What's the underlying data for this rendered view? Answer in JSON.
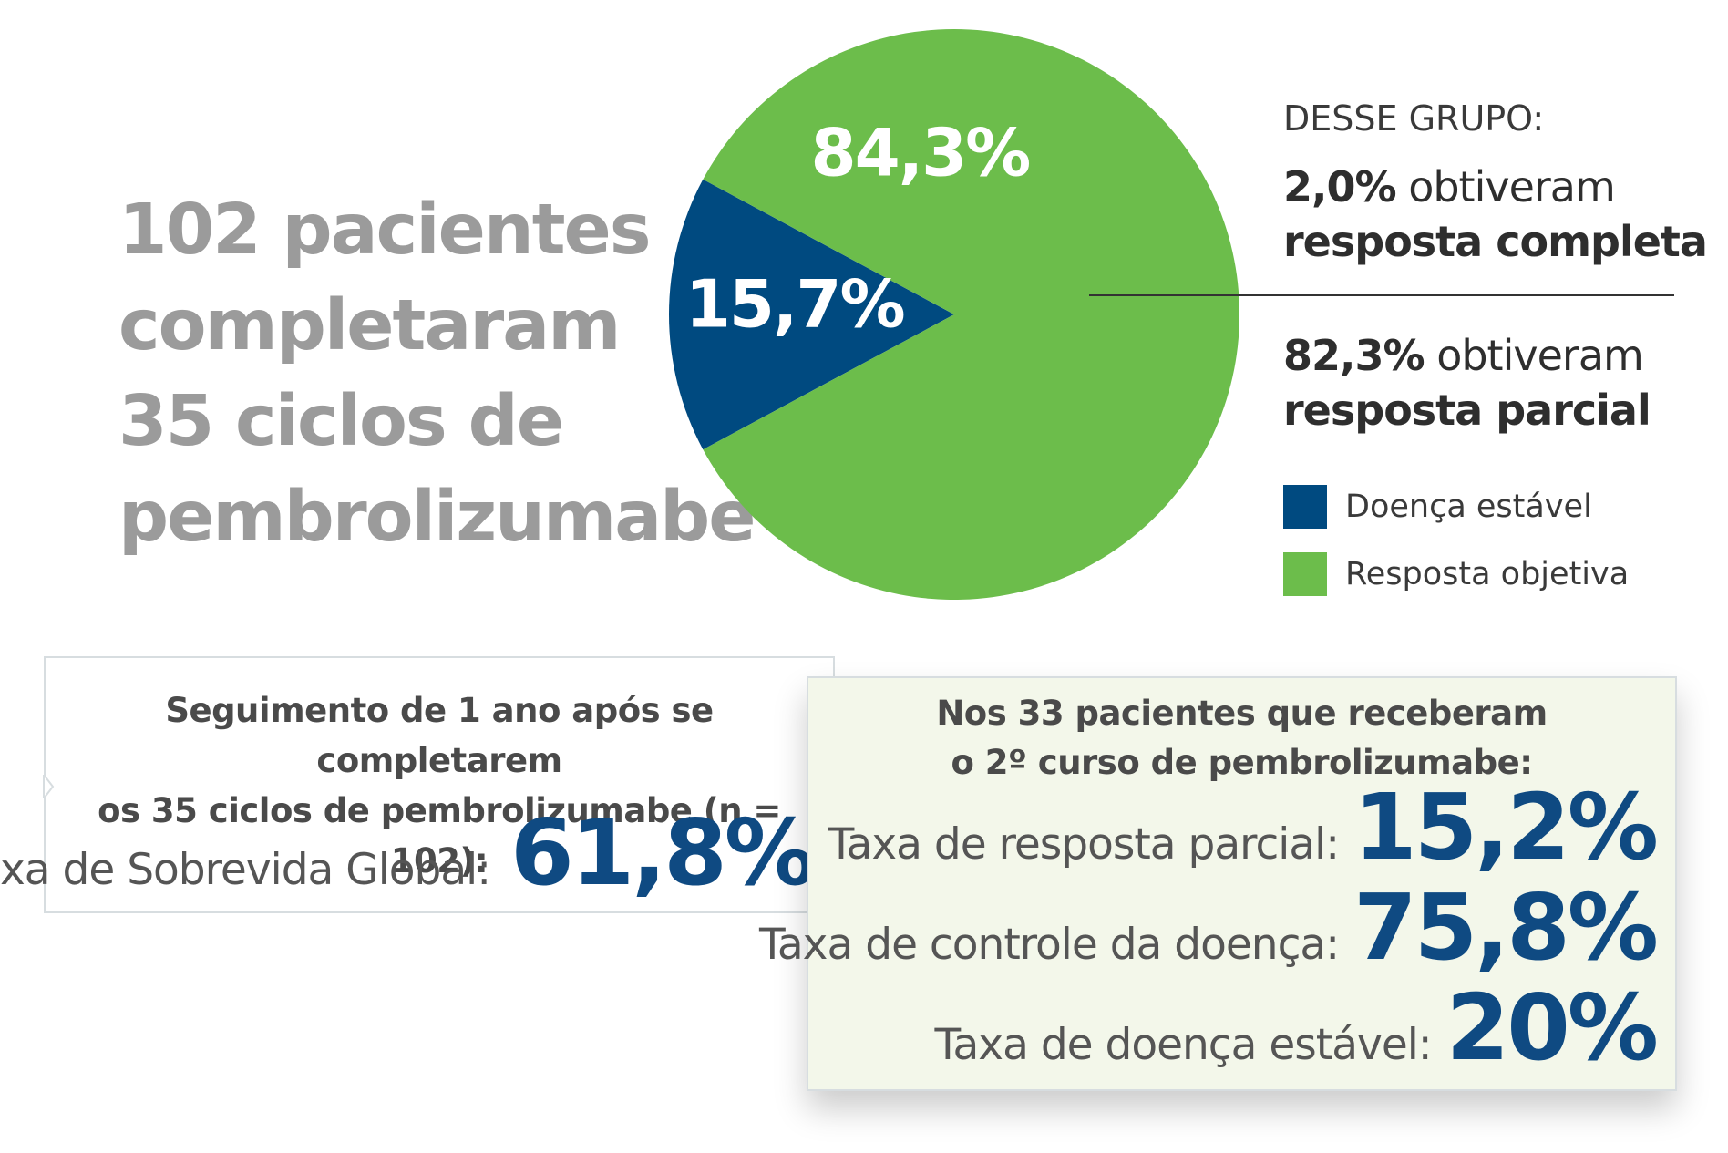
{
  "headline": [
    "102 pacientes",
    "completaram",
    "35 ciclos de",
    "pembrolizumabe"
  ],
  "chart_data": {
    "type": "pie",
    "slices": [
      {
        "name": "Doença estável",
        "value": 15.7,
        "label": "15,7%",
        "color": "#004a80"
      },
      {
        "name": "Resposta objetiva",
        "value": 84.3,
        "label": "84,3%",
        "color": "#6cbd4b"
      }
    ],
    "legend": [
      {
        "label": "Doença estável",
        "color": "#004a80"
      },
      {
        "label": "Resposta objetiva",
        "color": "#6cbd4b"
      }
    ],
    "legend_placement": "right"
  },
  "group": {
    "title": "DESSE GRUPO:",
    "complete": {
      "pct": "2,0%",
      "text": "obtiveram",
      "bold": "resposta completa"
    },
    "partial": {
      "pct": "82,3%",
      "text": "obtiveram",
      "bold": "resposta parcial"
    }
  },
  "followup": {
    "title_line1": "Seguimento de 1 ano após se completarem",
    "title_line2": "os 35 ciclos de pembrolizumabe (n = 102):",
    "label": "Taxa de Sobrevida Global:",
    "value": "61,8%"
  },
  "second_course": {
    "title_line1": "Nos 33 pacientes que receberam",
    "title_line2": "o 2º curso de pembrolizumabe:",
    "rows": [
      {
        "label": "Taxa de resposta parcial:",
        "value": "15,2%"
      },
      {
        "label": "Taxa de controle da doença:",
        "value": "75,8%"
      },
      {
        "label": "Taxa de doença estável:",
        "value": "20%"
      }
    ]
  }
}
